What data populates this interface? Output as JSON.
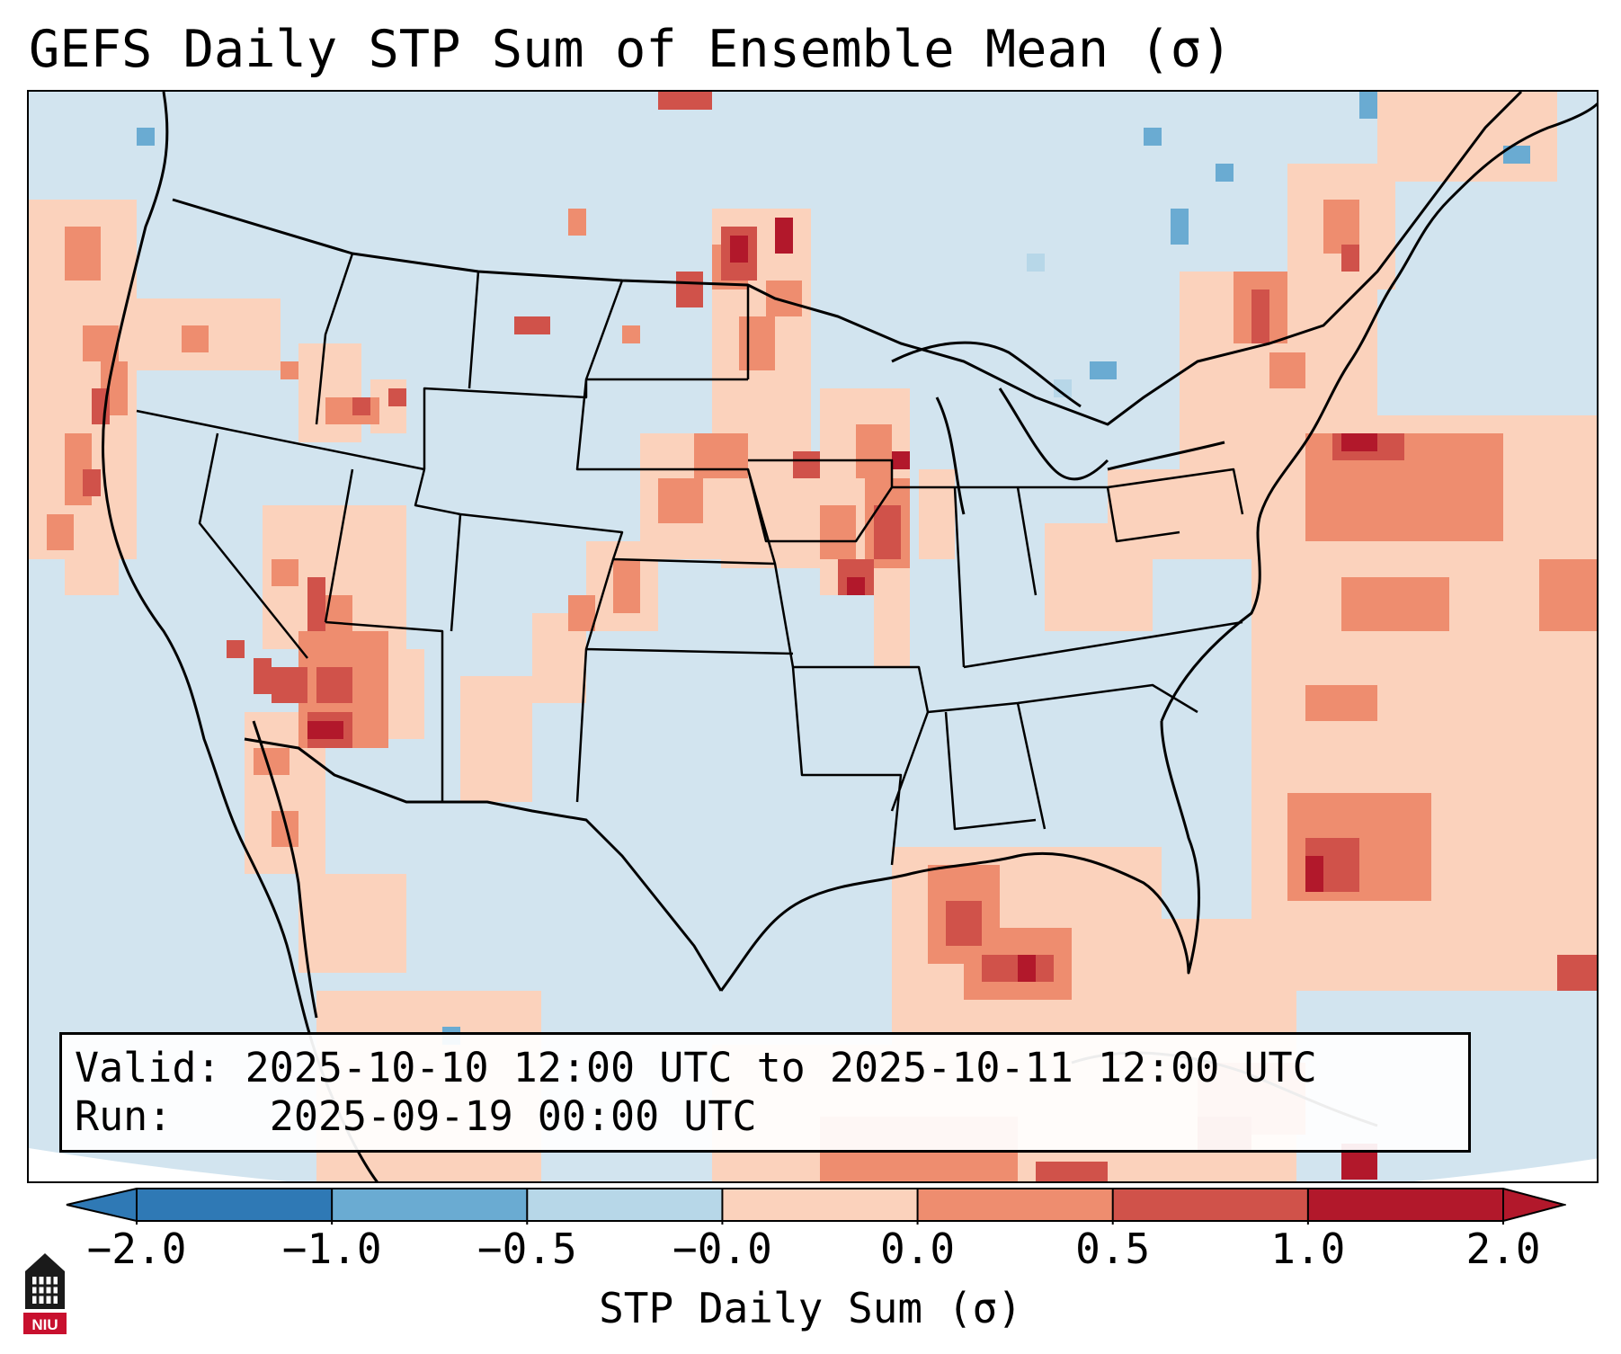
{
  "title": "GEFS Daily STP Sum of Ensemble Mean (σ)",
  "info_box": {
    "valid_label": "Valid:",
    "valid_value": "2025-10-10 12:00 UTC to 2025-10-11 12:00 UTC",
    "run_label": "Run:",
    "run_value": "2025-09-19 00:00 UTC"
  },
  "colorbar": {
    "label": "STP Daily Sum (σ)",
    "ticks": [
      "−2.0",
      "−1.0",
      "−0.5",
      "−0.0",
      "0.0",
      "0.5",
      "1.0",
      "2.0"
    ],
    "colors": [
      "#2f79b5",
      "#6aabd2",
      "#b7d7e8",
      "#f7f7f7",
      "#fbd2bc",
      "#ee8d6f",
      "#d0524a",
      "#b2182b"
    ],
    "background_field_color": "#d2e4ef"
  },
  "logo": {
    "name": "NIU",
    "caption": "NIU"
  }
}
